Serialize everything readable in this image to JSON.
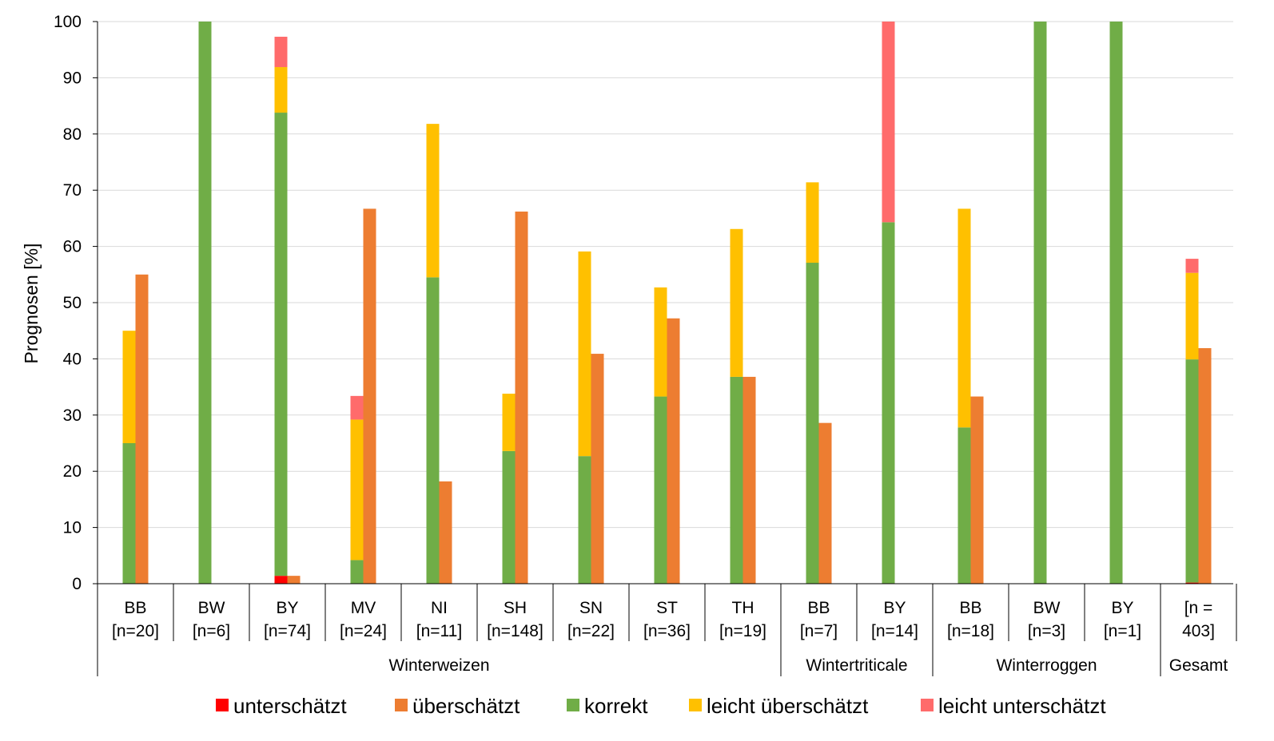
{
  "chart_data": {
    "type": "bar",
    "ylabel": "Prognosen [%]",
    "xlabel": "",
    "ylim": [
      0,
      100
    ],
    "yticks": [
      0,
      10,
      20,
      30,
      40,
      50,
      60,
      70,
      80,
      90,
      100
    ],
    "grid": true,
    "legend_position": "bottom",
    "colors": {
      "unterschaetzt": "#ff0000",
      "ueberschaetzt": "#ed7d31",
      "korrekt": "#70ad47",
      "leicht_ueberschaetzt": "#ffc000",
      "leicht_unterschaetzt": "#ff6b6b",
      "grid": "#d9d9d9"
    },
    "legend": [
      {
        "key": "unterschaetzt",
        "label": "unterschätzt"
      },
      {
        "key": "ueberschaetzt",
        "label": "überschätzt"
      },
      {
        "key": "korrekt",
        "label": "korrekt"
      },
      {
        "key": "leicht_ueberschaetzt",
        "label": "leicht überschätzt"
      },
      {
        "key": "leicht_unterschaetzt",
        "label": "leicht unterschätzt"
      }
    ],
    "groups": [
      {
        "name": "Winterweizen",
        "count": 9
      },
      {
        "name": "Wintertriticale",
        "count": 2
      },
      {
        "name": "Winterroggen",
        "count": 3
      },
      {
        "name": "Gesamt",
        "count": 1
      }
    ],
    "categories": [
      {
        "label1": "BB",
        "label2": "[n=20]",
        "left": {
          "unterschaetzt": 0,
          "korrekt": 25,
          "leicht_ueberschaetzt": 20,
          "leicht_unterschaetzt": 0
        },
        "ueberschaetzt": 55
      },
      {
        "label1": "BW",
        "label2": "[n=6]",
        "left": {
          "unterschaetzt": 0,
          "korrekt": 100,
          "leicht_ueberschaetzt": 0,
          "leicht_unterschaetzt": 0
        },
        "ueberschaetzt": 0
      },
      {
        "label1": "BY",
        "label2": "[n=74]",
        "left": {
          "unterschaetzt": 1.4,
          "korrekt": 82.4,
          "leicht_ueberschaetzt": 8.1,
          "leicht_unterschaetzt": 5.4
        },
        "ueberschaetzt": 1.4
      },
      {
        "label1": "MV",
        "label2": "[n=24]",
        "left": {
          "unterschaetzt": 0,
          "korrekt": 4.2,
          "leicht_ueberschaetzt": 25,
          "leicht_unterschaetzt": 4.2
        },
        "ueberschaetzt": 66.7
      },
      {
        "label1": "NI",
        "label2": "[n=11]",
        "left": {
          "unterschaetzt": 0,
          "korrekt": 54.5,
          "leicht_ueberschaetzt": 27.3,
          "leicht_unterschaetzt": 0
        },
        "ueberschaetzt": 18.2
      },
      {
        "label1": "SH",
        "label2": "[n=148]",
        "left": {
          "unterschaetzt": 0,
          "korrekt": 23.6,
          "leicht_ueberschaetzt": 10.2,
          "leicht_unterschaetzt": 0
        },
        "ueberschaetzt": 66.2
      },
      {
        "label1": "SN",
        "label2": "[n=22]",
        "left": {
          "unterschaetzt": 0,
          "korrekt": 22.7,
          "leicht_ueberschaetzt": 36.4,
          "leicht_unterschaetzt": 0
        },
        "ueberschaetzt": 40.9
      },
      {
        "label1": "ST",
        "label2": "[n=36]",
        "left": {
          "unterschaetzt": 0,
          "korrekt": 33.3,
          "leicht_ueberschaetzt": 19.4,
          "leicht_unterschaetzt": 0
        },
        "ueberschaetzt": 47.2
      },
      {
        "label1": "TH",
        "label2": "[n=19]",
        "left": {
          "unterschaetzt": 0,
          "korrekt": 36.8,
          "leicht_ueberschaetzt": 26.3,
          "leicht_unterschaetzt": 0
        },
        "ueberschaetzt": 36.8
      },
      {
        "label1": "BB",
        "label2": "[n=7]",
        "left": {
          "unterschaetzt": 0,
          "korrekt": 57.1,
          "leicht_ueberschaetzt": 14.3,
          "leicht_unterschaetzt": 0
        },
        "ueberschaetzt": 28.6
      },
      {
        "label1": "BY",
        "label2": "[n=14]",
        "left": {
          "unterschaetzt": 0,
          "korrekt": 64.3,
          "leicht_ueberschaetzt": 0,
          "leicht_unterschaetzt": 35.7
        },
        "ueberschaetzt": 0
      },
      {
        "label1": "BB",
        "label2": "[n=18]",
        "left": {
          "unterschaetzt": 0,
          "korrekt": 27.8,
          "leicht_ueberschaetzt": 38.9,
          "leicht_unterschaetzt": 0
        },
        "ueberschaetzt": 33.3
      },
      {
        "label1": "BW",
        "label2": "[n=3]",
        "left": {
          "unterschaetzt": 0,
          "korrekt": 100,
          "leicht_ueberschaetzt": 0,
          "leicht_unterschaetzt": 0
        },
        "ueberschaetzt": 0
      },
      {
        "label1": "BY",
        "label2": "[n=1]",
        "left": {
          "unterschaetzt": 0,
          "korrekt": 100,
          "leicht_ueberschaetzt": 0,
          "leicht_unterschaetzt": 0
        },
        "ueberschaetzt": 0
      },
      {
        "label1": "[n =",
        "label2": "403]",
        "left": {
          "unterschaetzt": 0.2,
          "korrekt": 39.7,
          "leicht_ueberschaetzt": 15.4,
          "leicht_unterschaetzt": 2.5
        },
        "ueberschaetzt": 41.9
      }
    ]
  }
}
